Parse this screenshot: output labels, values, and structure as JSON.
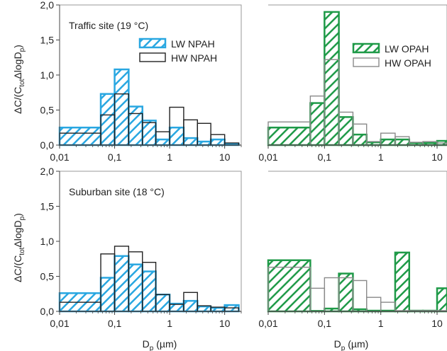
{
  "chart_data": [
    {
      "type": "bar",
      "panel": "top-left",
      "annotation": "Traffic site (19 °C)",
      "ylabel": "ΔC/(Ctot·ΔlogDp)",
      "xlabel": "",
      "xscale": "log",
      "xlim": [
        0.01,
        20
      ],
      "ylim": [
        0,
        2.0
      ],
      "x_ticks": [
        "0,01",
        "0,1",
        "1",
        "10"
      ],
      "y_ticks": [
        "0,0",
        "0,5",
        "1,0",
        "1,5",
        "2,0"
      ],
      "legend": [
        "LW NPAH",
        "HW NPAH"
      ],
      "bin_edges": [
        0.01,
        0.056,
        0.1,
        0.18,
        0.32,
        0.56,
        1.0,
        1.8,
        3.2,
        5.6,
        10,
        18
      ],
      "series": [
        {
          "name": "LW NPAH",
          "color": "#29a7e1",
          "hatched": true,
          "values": [
            0.25,
            0.73,
            1.08,
            0.55,
            0.35,
            0.08,
            0.25,
            0.1,
            0.05,
            0.08,
            0.02
          ]
        },
        {
          "name": "HW NPAH",
          "color": "#222222",
          "hatched": false,
          "values": [
            0.17,
            0.43,
            0.73,
            0.45,
            0.32,
            0.19,
            0.54,
            0.36,
            0.31,
            0.15,
            0.03
          ]
        }
      ]
    },
    {
      "type": "bar",
      "panel": "top-right",
      "xscale": "log",
      "xlim": [
        0.01,
        15
      ],
      "ylim": [
        0,
        2.0
      ],
      "x_ticks": [
        "0,01",
        "0,1",
        "1",
        "10"
      ],
      "legend": [
        "LW OPAH",
        "HW OPAH"
      ],
      "bin_edges": [
        0.01,
        0.056,
        0.1,
        0.18,
        0.32,
        0.56,
        1.0,
        1.8,
        3.2,
        5.6,
        10,
        18
      ],
      "series": [
        {
          "name": "LW OPAH",
          "color": "#1f9a48",
          "hatched": true,
          "values": [
            0.25,
            0.6,
            1.9,
            0.4,
            0.15,
            0.04,
            0.08,
            0.08,
            0.03,
            0.03,
            0.06
          ]
        },
        {
          "name": "HW OPAH",
          "color": "#8a8a8a",
          "hatched": false,
          "values": [
            0.33,
            0.7,
            1.22,
            0.47,
            0.3,
            0.05,
            0.17,
            0.12,
            0.04,
            0.05,
            0.03
          ]
        }
      ]
    },
    {
      "type": "bar",
      "panel": "bottom-left",
      "annotation": "Suburban site (18 °C)",
      "ylabel": "ΔC/(Ctot·ΔlogDp)",
      "xlabel": "Dp (µm)",
      "xscale": "log",
      "xlim": [
        0.01,
        20
      ],
      "ylim": [
        0,
        2.0
      ],
      "x_ticks": [
        "0,01",
        "0,1",
        "1",
        "10"
      ],
      "y_ticks": [
        "0,0",
        "0,5",
        "1,0",
        "1,5",
        "2,0"
      ],
      "bin_edges": [
        0.01,
        0.056,
        0.1,
        0.18,
        0.32,
        0.56,
        1.0,
        1.8,
        3.2,
        5.6,
        10,
        18
      ],
      "series": [
        {
          "name": "LW NPAH",
          "color": "#29a7e1",
          "hatched": true,
          "values": [
            0.26,
            0.48,
            0.79,
            0.67,
            0.57,
            0.24,
            0.11,
            0.15,
            0.07,
            0.05,
            0.09
          ]
        },
        {
          "name": "HW NPAH",
          "color": "#222222",
          "hatched": false,
          "values": [
            0.13,
            0.82,
            0.93,
            0.85,
            0.7,
            0.24,
            0.1,
            0.27,
            0.08,
            0.06,
            0.05
          ]
        }
      ]
    },
    {
      "type": "bar",
      "panel": "bottom-right",
      "xlabel": "Dp (µm)",
      "xscale": "log",
      "xlim": [
        0.01,
        15
      ],
      "ylim": [
        0,
        2.0
      ],
      "x_ticks": [
        "0,01",
        "0,1",
        "1",
        "10"
      ],
      "bin_edges": [
        0.01,
        0.056,
        0.1,
        0.18,
        0.32,
        0.56,
        1.0,
        1.8,
        3.2,
        5.6,
        10,
        18
      ],
      "series": [
        {
          "name": "LW OPAH",
          "color": "#1f9a48",
          "hatched": true,
          "values": [
            0.73,
            0.0,
            0.04,
            0.54,
            0.03,
            0.01,
            0.01,
            0.84,
            0.01,
            0.01,
            0.33
          ]
        },
        {
          "name": "HW OPAH",
          "color": "#8a8a8a",
          "hatched": false,
          "values": [
            0.63,
            0.33,
            0.48,
            0.48,
            0.44,
            0.2,
            0.13,
            0.01,
            0.01,
            0.01,
            0.01
          ]
        }
      ]
    }
  ],
  "labels": {
    "ylabel_top": "ΔC/(Ctot·ΔlogDp)",
    "ylabel_bottom": "ΔC/(Ctot·ΔlogDp)",
    "xlabel_left": "Dp (µm)",
    "xlabel_right": "Dp (µm)"
  }
}
